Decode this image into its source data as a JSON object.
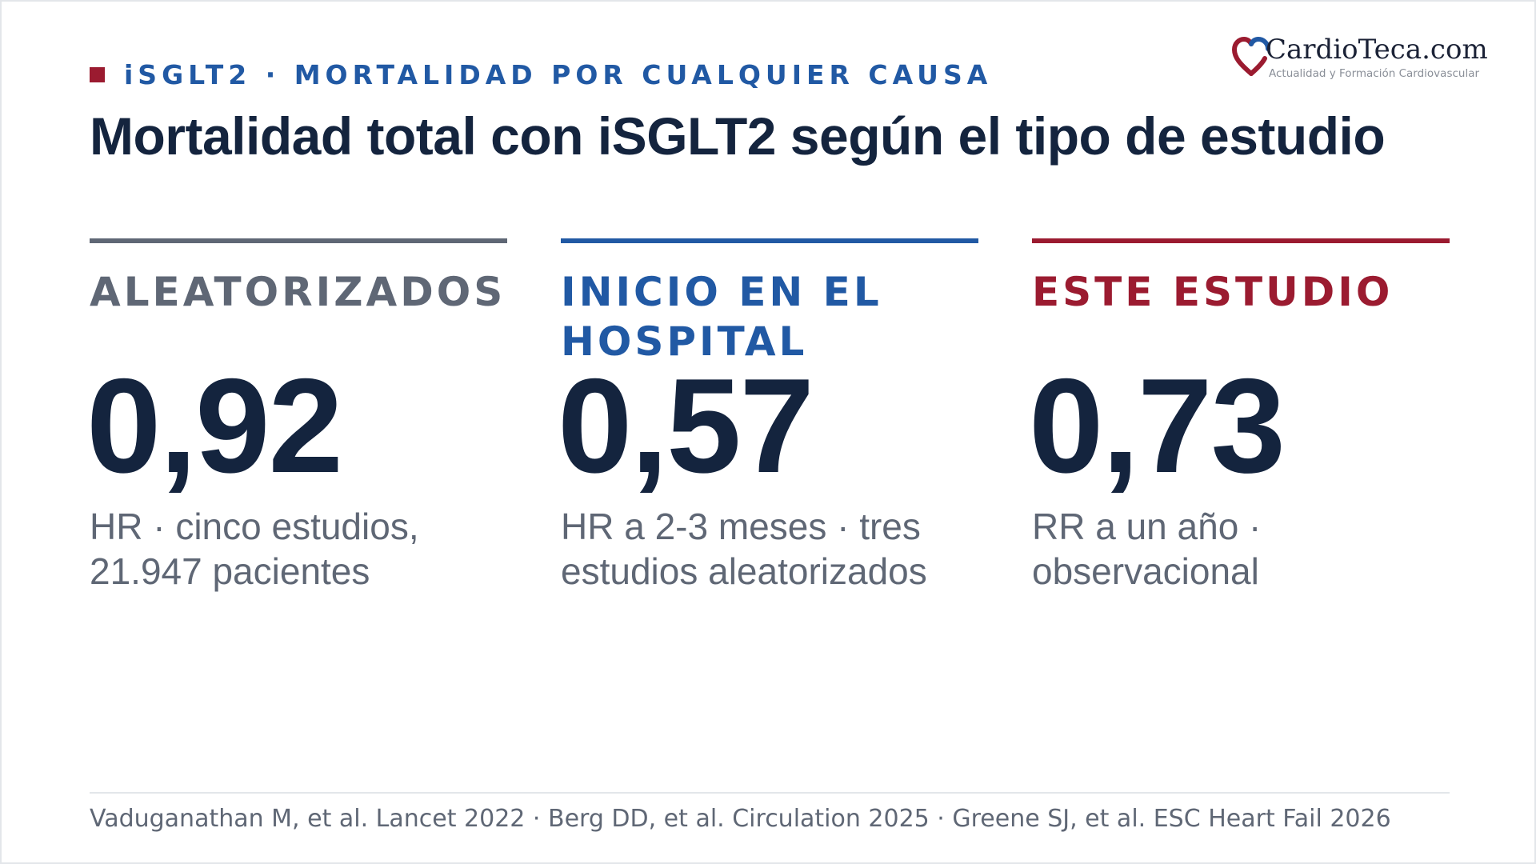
{
  "header": {
    "kicker": "iSGLT2 · MORTALIDAD POR CUALQUIER CAUSA",
    "title": "Mortalidad total con iSGLT2 según el tipo de estudio"
  },
  "logo": {
    "name": "CardioTeca.com",
    "tagline": "Actualidad y Formación Cardiovascular",
    "icon": "heart-icon"
  },
  "columns": [
    {
      "label": "ALEATORIZADOS",
      "value": "0,92",
      "description": "HR · cinco estudios, 21.947 pacientes",
      "color": "#5f6775"
    },
    {
      "label": "INICIO EN EL HOSPITAL",
      "value": "0,57",
      "description": "HR a 2-3 meses · tres estudios aleatorizados",
      "color": "#2159a4"
    },
    {
      "label": "ESTE ESTUDIO",
      "value": "0,73",
      "description": "RR a un año · observacional",
      "color": "#9b1b30"
    }
  ],
  "footer": {
    "references": "Vaduganathan M, et al. Lancet 2022 · Berg DD, et al. Circulation 2025 · Greene SJ, et al. ESC Heart Fail 2026"
  },
  "colors": {
    "accent_red": "#9b1b30",
    "accent_blue": "#2159a4",
    "gray": "#5f6775",
    "navy": "#14243e"
  }
}
